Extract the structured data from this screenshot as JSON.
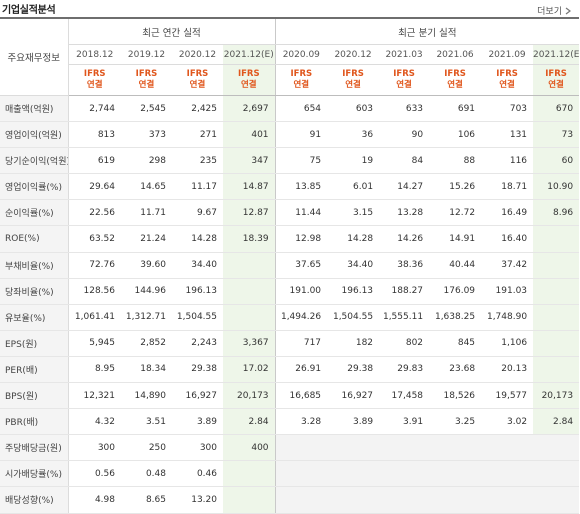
{
  "header": {
    "title": "기업실적분석",
    "more_label": "더보기",
    "more_icon": "chevron-right-icon"
  },
  "table": {
    "corner_label": "주요재무정보",
    "group_annual": "최근 연간 실적",
    "group_quarter": "최근 분기 실적",
    "periods": [
      "2018.12",
      "2019.12",
      "2020.12",
      "2021.12(E)",
      "2020.09",
      "2020.12",
      "2021.03",
      "2021.06",
      "2021.09",
      "2021.12(E)"
    ],
    "ifrs_line1": "IFRS",
    "ifrs_line2": "연결",
    "rows": [
      {
        "label": "매출액(억원)",
        "values": [
          "2,744",
          "2,545",
          "2,425",
          "2,697",
          "654",
          "603",
          "633",
          "691",
          "703",
          "670"
        ]
      },
      {
        "label": "영업이익(억원)",
        "values": [
          "813",
          "373",
          "271",
          "401",
          "91",
          "36",
          "90",
          "106",
          "131",
          "73"
        ]
      },
      {
        "label": "당기순이익(억원)",
        "values": [
          "619",
          "298",
          "235",
          "347",
          "75",
          "19",
          "84",
          "88",
          "116",
          "60"
        ]
      },
      {
        "label": "영업이익률(%)",
        "values": [
          "29.64",
          "14.65",
          "11.17",
          "14.87",
          "13.85",
          "6.01",
          "14.27",
          "15.26",
          "18.71",
          "10.90"
        ]
      },
      {
        "label": "순이익률(%)",
        "values": [
          "22.56",
          "11.71",
          "9.67",
          "12.87",
          "11.44",
          "3.15",
          "13.28",
          "12.72",
          "16.49",
          "8.96"
        ]
      },
      {
        "label": "ROE(%)",
        "values": [
          "63.52",
          "21.24",
          "14.28",
          "18.39",
          "12.98",
          "14.28",
          "14.26",
          "14.91",
          "16.40",
          ""
        ]
      },
      {
        "label": "부채비율(%)",
        "values": [
          "72.76",
          "39.60",
          "34.40",
          "",
          "37.65",
          "34.40",
          "38.36",
          "40.44",
          "37.42",
          ""
        ]
      },
      {
        "label": "당좌비율(%)",
        "values": [
          "128.56",
          "144.96",
          "196.13",
          "",
          "191.00",
          "196.13",
          "188.27",
          "176.09",
          "191.03",
          ""
        ]
      },
      {
        "label": "유보율(%)",
        "values": [
          "1,061.41",
          "1,312.71",
          "1,504.55",
          "",
          "1,494.26",
          "1,504.55",
          "1,555.11",
          "1,638.25",
          "1,748.90",
          ""
        ]
      },
      {
        "label": "EPS(원)",
        "values": [
          "5,945",
          "2,852",
          "2,243",
          "3,367",
          "717",
          "182",
          "802",
          "845",
          "1,106",
          ""
        ]
      },
      {
        "label": "PER(배)",
        "values": [
          "8.95",
          "18.34",
          "29.38",
          "17.02",
          "26.91",
          "29.38",
          "29.83",
          "23.68",
          "20.13",
          ""
        ]
      },
      {
        "label": "BPS(원)",
        "values": [
          "12,321",
          "14,890",
          "16,927",
          "20,173",
          "16,685",
          "16,927",
          "17,458",
          "18,526",
          "19,577",
          "20,173"
        ]
      },
      {
        "label": "PBR(배)",
        "values": [
          "4.32",
          "3.51",
          "3.89",
          "2.84",
          "3.28",
          "3.89",
          "3.91",
          "3.25",
          "3.02",
          "2.84"
        ]
      },
      {
        "label": "주당배당금(원)",
        "values": [
          "300",
          "250",
          "300",
          "400",
          "",
          "",
          "",
          "",
          "",
          ""
        ]
      },
      {
        "label": "시가배당률(%)",
        "values": [
          "0.56",
          "0.48",
          "0.46",
          "",
          "",
          "",
          "",
          "",
          "",
          ""
        ]
      },
      {
        "label": "배당성향(%)",
        "values": [
          "4.98",
          "8.65",
          "13.20",
          "",
          "",
          "",
          "",
          "",
          "",
          ""
        ]
      }
    ]
  }
}
